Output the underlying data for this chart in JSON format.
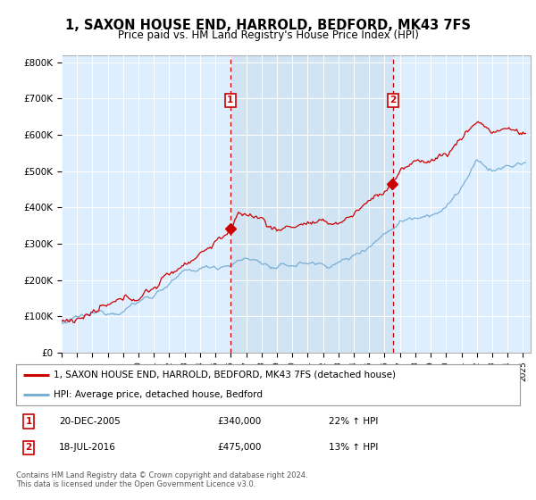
{
  "title": "1, SAXON HOUSE END, HARROLD, BEDFORD, MK43 7FS",
  "subtitle": "Price paid vs. HM Land Registry's House Price Index (HPI)",
  "line1_color": "#cc0000",
  "line2_color": "#7aafd4",
  "fill_color": "#cce0f0",
  "bg_color": "#ddeeff",
  "sale1_year": 2005.97,
  "sale1_value": 340000,
  "sale2_year": 2016.54,
  "sale2_value": 475000,
  "legend_label1": "1, SAXON HOUSE END, HARROLD, BEDFORD, MK43 7FS (detached house)",
  "legend_label2": "HPI: Average price, detached house, Bedford",
  "footer": "Contains HM Land Registry data © Crown copyright and database right 2024.\nThis data is licensed under the Open Government Licence v3.0.",
  "xmin": 1995.0,
  "xmax": 2025.5,
  "ylim": [
    0,
    820000
  ],
  "yticks": [
    0,
    100000,
    200000,
    300000,
    400000,
    500000,
    600000,
    700000,
    800000
  ],
  "ytick_labels": [
    "£0",
    "£100K",
    "£200K",
    "£300K",
    "£400K",
    "£500K",
    "£600K",
    "£700K",
    "£800K"
  ]
}
